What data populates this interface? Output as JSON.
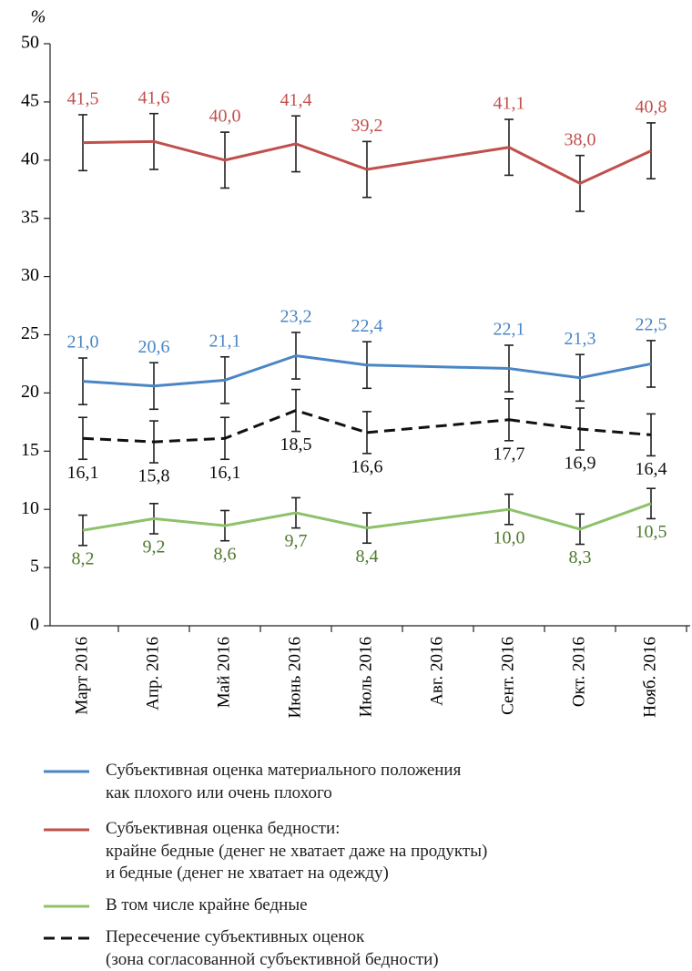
{
  "chart_data": {
    "type": "line",
    "y_unit_label": "%",
    "categories": [
      "Март 2016",
      "Апр. 2016",
      "Май 2016",
      "Июнь 2016",
      "Июль 2016",
      "Авг. 2016",
      "Сент. 2016",
      "Окт. 2016",
      "Нояб. 2016"
    ],
    "ylim": [
      0,
      50
    ],
    "yticks": [
      0,
      5,
      10,
      15,
      20,
      25,
      30,
      35,
      40,
      45,
      50
    ],
    "series": [
      {
        "name": "Субъективная оценка материального положения\nкак плохого или очень плохого",
        "color": "#4a86c5",
        "dash": false,
        "label_side": "above",
        "values": [
          21.0,
          20.6,
          21.1,
          23.2,
          22.4,
          null,
          22.1,
          21.3,
          22.5
        ],
        "value_labels": [
          "21,0",
          "20,6",
          "21,1",
          "23,2",
          "22,4",
          null,
          "22,1",
          "21,3",
          "22,5"
        ],
        "errors": [
          2.0,
          2.0,
          2.0,
          2.0,
          2.0,
          null,
          2.0,
          2.0,
          2.0
        ]
      },
      {
        "name": "Субъективная оценка бедности:\nкрайне бедные (денег не хватает даже на продукты)\nи бедные (денег не хватает на одежду)",
        "color": "#c0504d",
        "dash": false,
        "label_side": "above",
        "values": [
          41.5,
          41.6,
          40.0,
          41.4,
          39.2,
          null,
          41.1,
          38.0,
          40.8
        ],
        "value_labels": [
          "41,5",
          "41,6",
          "40,0",
          "41,4",
          "39,2",
          null,
          "41,1",
          "38,0",
          "40,8"
        ],
        "errors": [
          2.4,
          2.4,
          2.4,
          2.4,
          2.4,
          null,
          2.4,
          2.4,
          2.4
        ]
      },
      {
        "name": "В том числе крайне бедные",
        "color": "#8dc26b",
        "dash": false,
        "label_side": "below",
        "values": [
          8.2,
          9.2,
          8.6,
          9.7,
          8.4,
          null,
          10.0,
          8.3,
          10.5
        ],
        "value_labels": [
          "8,2",
          "9,2",
          "8,6",
          "9,7",
          "8,4",
          null,
          "10,0",
          "8,3",
          "10,5"
        ],
        "errors": [
          1.3,
          1.3,
          1.3,
          1.3,
          1.3,
          null,
          1.3,
          1.3,
          1.3
        ]
      },
      {
        "name": "Пересечение субъективных оценок\n(зона согласованной субъективной бедности)",
        "color": "#111111",
        "dash": true,
        "label_side": "below",
        "values": [
          16.1,
          15.8,
          16.1,
          18.5,
          16.6,
          null,
          17.7,
          16.9,
          16.4
        ],
        "value_labels": [
          "16,1",
          "15,8",
          "16,1",
          "18,5",
          "16,6",
          null,
          "17,7",
          "16,9",
          "16,4"
        ],
        "errors": [
          1.8,
          1.8,
          1.8,
          1.8,
          1.8,
          null,
          1.8,
          1.8,
          1.8
        ]
      }
    ]
  }
}
